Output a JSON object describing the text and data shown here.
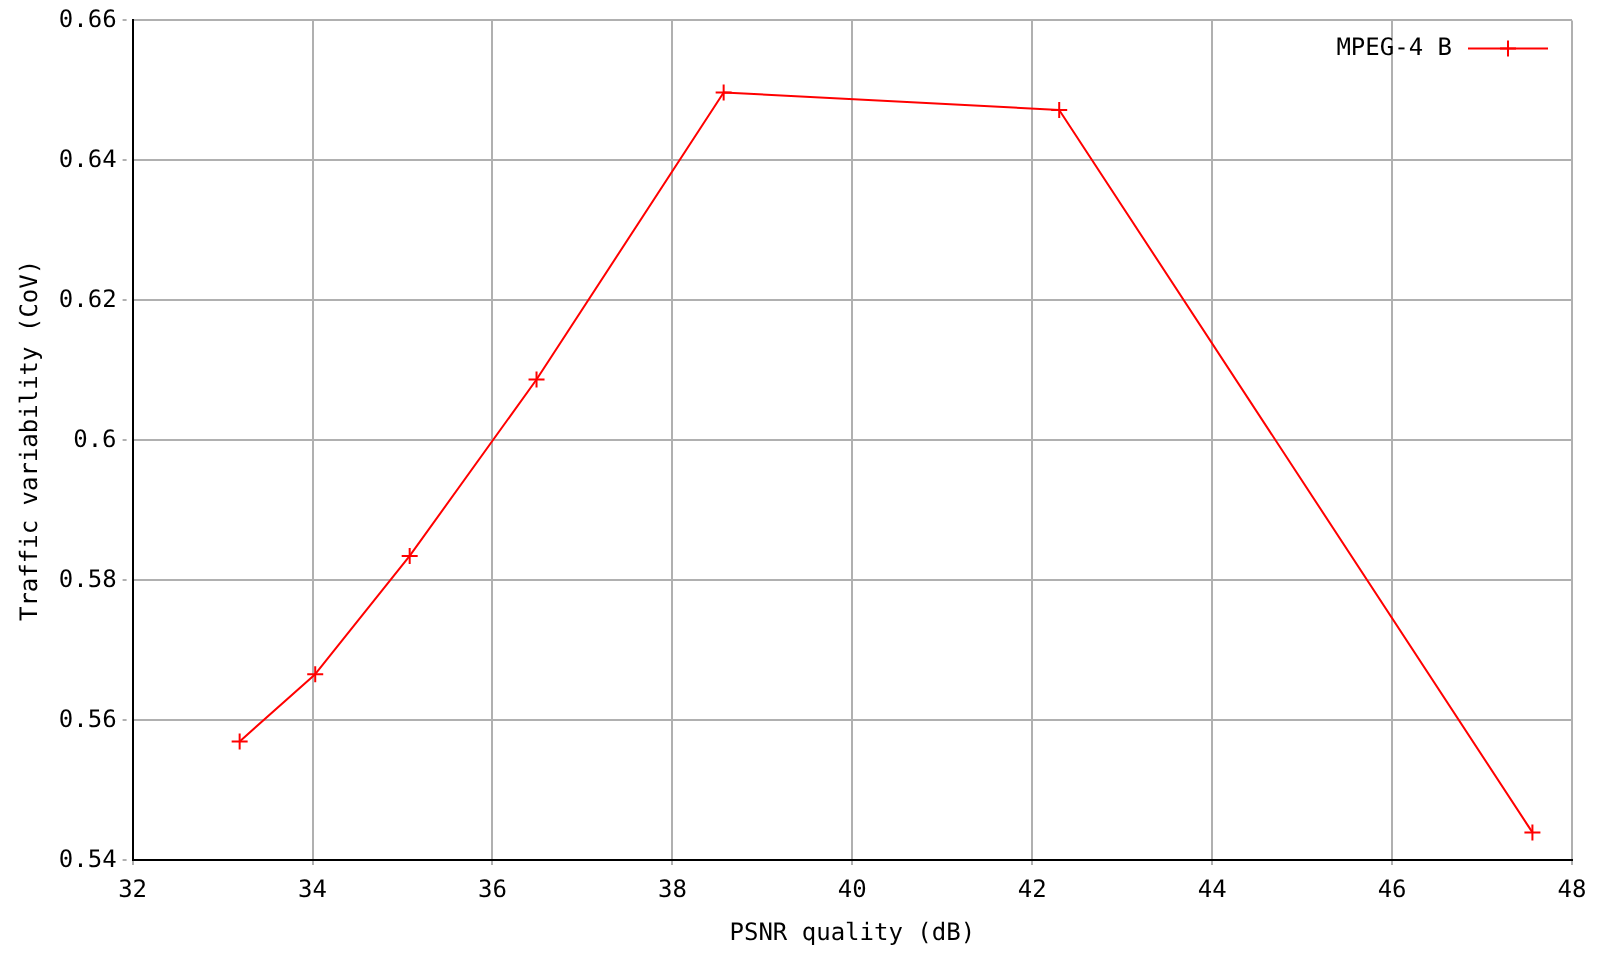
{
  "chart_data": {
    "type": "line",
    "xlabel": "PSNR quality (dB)",
    "ylabel": "Traffic variability (CoV)",
    "x": [
      33.19,
      34.03,
      35.08,
      36.49,
      38.57,
      42.3,
      47.56
    ],
    "series": [
      {
        "name": "MPEG-4 B",
        "color": "#ff0000",
        "values": [
          0.557,
          0.5666,
          0.5835,
          0.6087,
          0.6497,
          0.6472,
          0.544
        ]
      }
    ],
    "xlim": [
      32,
      48
    ],
    "xticks": [
      32,
      34,
      36,
      38,
      40,
      42,
      44,
      46,
      48
    ],
    "ylim": [
      0.54,
      0.66
    ],
    "yticks": [
      {
        "value": 0.54,
        "label": "0.54"
      },
      {
        "value": 0.56,
        "label": "0.56"
      },
      {
        "value": 0.58,
        "label": "0.58"
      },
      {
        "value": 0.6,
        "label": "0.6"
      },
      {
        "value": 0.62,
        "label": "0.62"
      },
      {
        "value": 0.64,
        "label": "0.64"
      },
      {
        "value": 0.66,
        "label": "0.66"
      }
    ],
    "grid": true,
    "legend": "top right",
    "marker": "cross",
    "line_style": "solid"
  }
}
